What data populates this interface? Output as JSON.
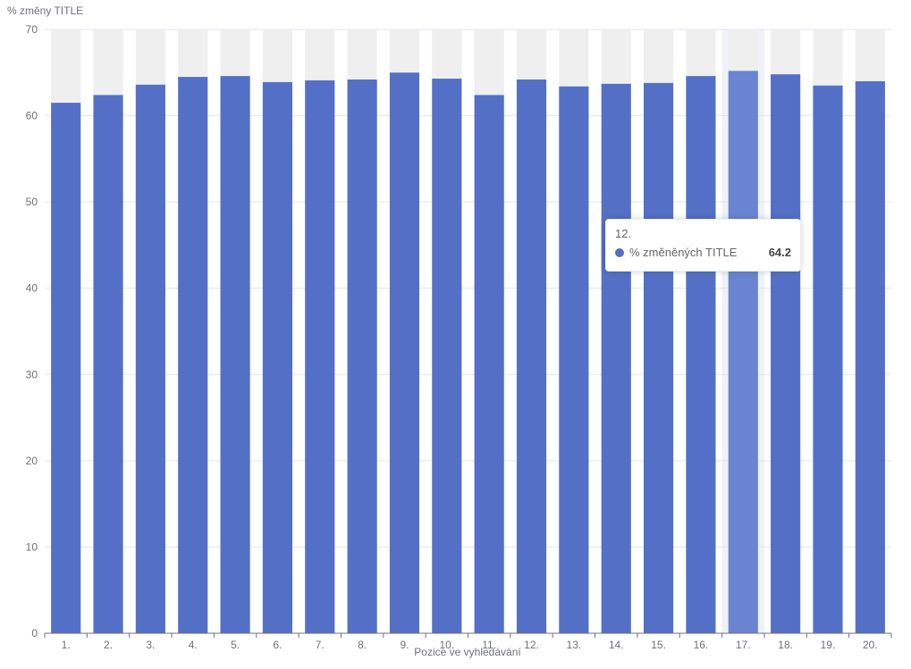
{
  "chart_data": {
    "type": "bar",
    "ylabel": "% změny TITLE",
    "xlabel": "Pozice ve vyhledávání",
    "ylim": [
      0,
      70
    ],
    "yticks": [
      0,
      10,
      20,
      30,
      40,
      50,
      60,
      70
    ],
    "categories": [
      "1.",
      "2.",
      "3.",
      "4.",
      "5.",
      "6.",
      "7.",
      "8.",
      "9.",
      "10.",
      "11.",
      "12.",
      "13.",
      "14.",
      "15.",
      "16.",
      "17.",
      "18.",
      "19.",
      "20."
    ],
    "series": [
      {
        "name": "% změněných TITLE",
        "values": [
          61.5,
          62.4,
          63.6,
          64.5,
          64.6,
          63.9,
          64.1,
          64.2,
          65.0,
          64.3,
          62.4,
          64.2,
          63.4,
          63.7,
          63.8,
          64.6,
          65.2,
          64.8,
          63.5,
          64.0
        ]
      }
    ],
    "background_bars": true,
    "highlighted_category": "17.",
    "grid": true,
    "colors": {
      "bar": "#5470c6",
      "bar_highlight": "#6a84d2",
      "background_bar": "#efefef",
      "axis": "#6e7079",
      "grid": "#e0e6f1"
    }
  },
  "tooltip": {
    "title": "12.",
    "series_name": "% změněných TITLE",
    "value": "64.2"
  }
}
